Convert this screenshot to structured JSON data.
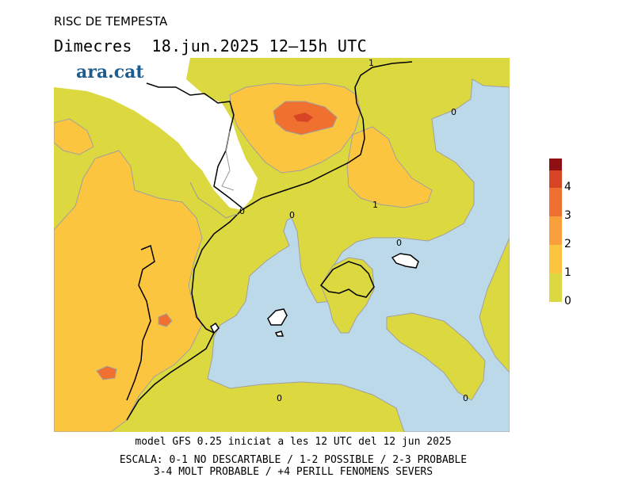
{
  "header": {
    "label": "RISC DE TEMPESTA",
    "title": "Dimecres  18.jun.2025 12–15h UTC"
  },
  "brand": "ara.cat",
  "map": {
    "contour_labels": [
      "1",
      "0",
      "0",
      "1",
      "0",
      "0",
      "0",
      "0"
    ]
  },
  "legend": {
    "levels": [
      {
        "label": "0",
        "color": "#dcd840"
      },
      {
        "label": "1",
        "color": "#fcc540"
      },
      {
        "label": "2",
        "color": "#f9a03a"
      },
      {
        "label": "3",
        "color": "#f07030"
      },
      {
        "label": "4",
        "color": "#d84525"
      },
      {
        "label": "",
        "color": "#900f12"
      }
    ]
  },
  "footer": {
    "model": "model GFS 0.25 iniciat a les 12 UTC del 12 jun 2025",
    "scale_line1": "ESCALA: 0-1 NO DESCARTABLE / 1-2 POSSIBLE / 2-3 PROBABLE",
    "scale_line2": "3-4 MOLT PROBABLE / +4 PERILL FENOMENS SEVERS"
  }
}
